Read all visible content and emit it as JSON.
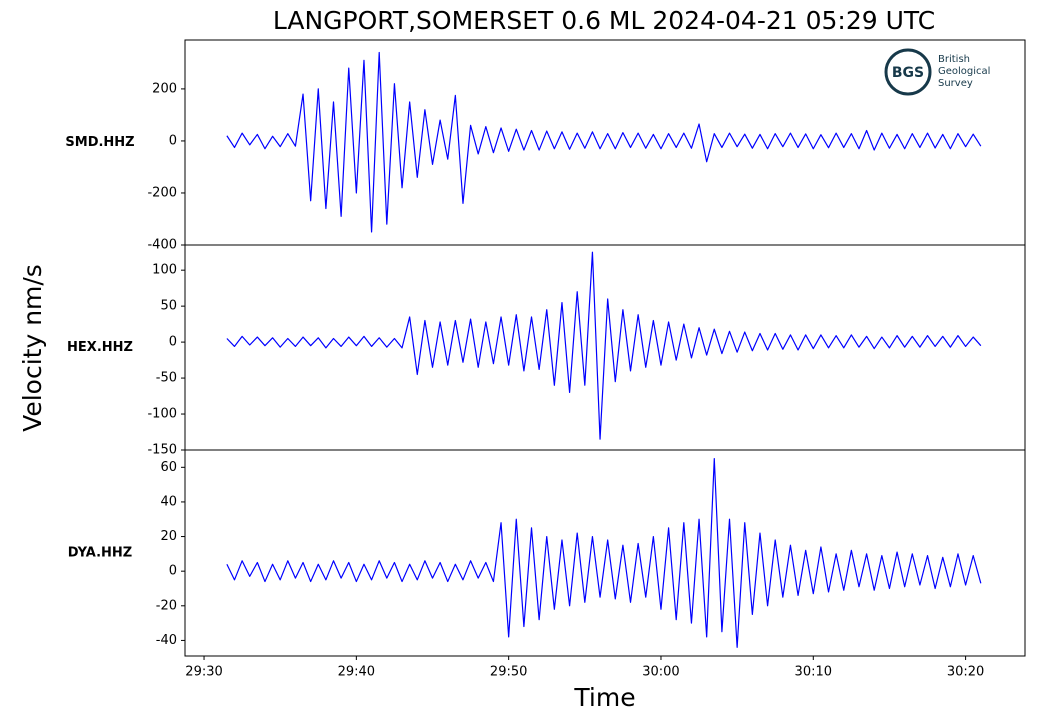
{
  "figure": {
    "title": "LANGPORT,SOMERSET 0.6 ML   2024-04-21 05:29 UTC",
    "ylabel": "Velocity nm/s",
    "xlabel": "Time"
  },
  "logo": {
    "abbr": "BGS",
    "lines": [
      "British",
      "Geological",
      "Survey"
    ]
  },
  "chart_data": [
    {
      "type": "line",
      "xlim": [
        1768.75,
        1823.9
      ],
      "ylim": [
        -400,
        388
      ],
      "yticks": [
        -400,
        -200,
        0,
        200
      ],
      "x": [
        1771.5,
        1772,
        1772.5,
        1773,
        1773.5,
        1774,
        1774.5,
        1775,
        1775.5,
        1776,
        1776.5,
        1777,
        1777.5,
        1778,
        1778.5,
        1779,
        1779.5,
        1780,
        1780.5,
        1781,
        1781.5,
        1782,
        1782.5,
        1783,
        1783.5,
        1784,
        1784.5,
        1785,
        1785.5,
        1786,
        1786.5,
        1787,
        1787.5,
        1788,
        1788.5,
        1789,
        1789.5,
        1790,
        1790.5,
        1791,
        1791.5,
        1792,
        1792.5,
        1793,
        1793.5,
        1794,
        1794.5,
        1795,
        1795.5,
        1796,
        1796.5,
        1797,
        1797.5,
        1798,
        1798.5,
        1799,
        1799.5,
        1800,
        1800.5,
        1801,
        1801.5,
        1802,
        1802.5,
        1803,
        1803.5,
        1804,
        1804.5,
        1805,
        1805.5,
        1806,
        1806.5,
        1807,
        1807.5,
        1808,
        1808.5,
        1809,
        1809.5,
        1810,
        1810.5,
        1811,
        1811.5,
        1812,
        1812.5,
        1813,
        1813.5,
        1814,
        1814.5,
        1815,
        1815.5,
        1816,
        1816.5,
        1817,
        1817.5,
        1818,
        1818.5,
        1819,
        1819.5,
        1820,
        1820.5,
        1821
      ],
      "series": [
        {
          "name": "SMD.HHZ",
          "color": "#0000ff",
          "values": [
            20,
            -25,
            30,
            -15,
            25,
            -30,
            18,
            -22,
            28,
            -20,
            180,
            -230,
            200,
            -260,
            150,
            -290,
            280,
            -200,
            310,
            -350,
            340,
            -320,
            220,
            -180,
            150,
            -140,
            120,
            -90,
            80,
            -70,
            175,
            -240,
            60,
            -50,
            55,
            -45,
            50,
            -40,
            45,
            -35,
            40,
            -35,
            38,
            -30,
            35,
            -32,
            30,
            -28,
            35,
            -30,
            28,
            -30,
            32,
            -25,
            30,
            -28,
            25,
            -30,
            28,
            -25,
            30,
            -28,
            65,
            -80,
            28,
            -25,
            30,
            -22,
            26,
            -28,
            25,
            -30,
            28,
            -22,
            30,
            -25,
            27,
            -30,
            24,
            -26,
            30,
            -25,
            28,
            -30,
            40,
            -35,
            30,
            -28,
            25,
            -30,
            28,
            -25,
            30,
            -27,
            25,
            -30,
            28,
            -22,
            26,
            -20
          ]
        }
      ]
    },
    {
      "type": "line",
      "xlim": [
        1768.75,
        1823.9
      ],
      "ylim": [
        -150,
        135
      ],
      "yticks": [
        -150,
        -100,
        -50,
        0,
        50,
        100
      ],
      "x": [
        1771.5,
        1772,
        1772.5,
        1773,
        1773.5,
        1774,
        1774.5,
        1775,
        1775.5,
        1776,
        1776.5,
        1777,
        1777.5,
        1778,
        1778.5,
        1779,
        1779.5,
        1780,
        1780.5,
        1781,
        1781.5,
        1782,
        1782.5,
        1783,
        1783.5,
        1784,
        1784.5,
        1785,
        1785.5,
        1786,
        1786.5,
        1787,
        1787.5,
        1788,
        1788.5,
        1789,
        1789.5,
        1790,
        1790.5,
        1791,
        1791.5,
        1792,
        1792.5,
        1793,
        1793.5,
        1794,
        1794.5,
        1795,
        1795.5,
        1796,
        1796.5,
        1797,
        1797.5,
        1798,
        1798.5,
        1799,
        1799.5,
        1800,
        1800.5,
        1801,
        1801.5,
        1802,
        1802.5,
        1803,
        1803.5,
        1804,
        1804.5,
        1805,
        1805.5,
        1806,
        1806.5,
        1807,
        1807.5,
        1808,
        1808.5,
        1809,
        1809.5,
        1810,
        1810.5,
        1811,
        1811.5,
        1812,
        1812.5,
        1813,
        1813.5,
        1814,
        1814.5,
        1815,
        1815.5,
        1816,
        1816.5,
        1817,
        1817.5,
        1818,
        1818.5,
        1819,
        1819.5,
        1820,
        1820.5,
        1821
      ],
      "series": [
        {
          "name": "HEX.HHZ",
          "color": "#0000ff",
          "values": [
            5,
            -6,
            8,
            -4,
            7,
            -5,
            6,
            -7,
            5,
            -6,
            7,
            -5,
            6,
            -8,
            5,
            -6,
            7,
            -5,
            8,
            -6,
            6,
            -7,
            5,
            -8,
            35,
            -45,
            30,
            -35,
            28,
            -32,
            30,
            -28,
            32,
            -35,
            28,
            -30,
            35,
            -32,
            38,
            -40,
            35,
            -38,
            45,
            -60,
            55,
            -70,
            70,
            -60,
            125,
            -135,
            60,
            -55,
            45,
            -40,
            38,
            -35,
            30,
            -32,
            28,
            -25,
            25,
            -22,
            20,
            -18,
            18,
            -16,
            15,
            -14,
            14,
            -12,
            12,
            -11,
            12,
            -10,
            10,
            -11,
            10,
            -9,
            10,
            -8,
            9,
            -8,
            10,
            -7,
            8,
            -9,
            7,
            -8,
            9,
            -7,
            8,
            -7,
            9,
            -6,
            8,
            -7,
            9,
            -6,
            7,
            -5
          ]
        }
      ]
    },
    {
      "type": "line",
      "xlim": [
        1768.75,
        1823.9
      ],
      "ylim": [
        -49,
        70
      ],
      "yticks": [
        -40,
        -20,
        0,
        20,
        40,
        60
      ],
      "xticks": [
        {
          "value": 1770,
          "label": "29:30"
        },
        {
          "value": 1780,
          "label": "29:40"
        },
        {
          "value": 1790,
          "label": "29:50"
        },
        {
          "value": 1800,
          "label": "30:00"
        },
        {
          "value": 1810,
          "label": "30:10"
        },
        {
          "value": 1820,
          "label": "30:20"
        }
      ],
      "x": [
        1771.5,
        1772,
        1772.5,
        1773,
        1773.5,
        1774,
        1774.5,
        1775,
        1775.5,
        1776,
        1776.5,
        1777,
        1777.5,
        1778,
        1778.5,
        1779,
        1779.5,
        1780,
        1780.5,
        1781,
        1781.5,
        1782,
        1782.5,
        1783,
        1783.5,
        1784,
        1784.5,
        1785,
        1785.5,
        1786,
        1786.5,
        1787,
        1787.5,
        1788,
        1788.5,
        1789,
        1789.5,
        1790,
        1790.5,
        1791,
        1791.5,
        1792,
        1792.5,
        1793,
        1793.5,
        1794,
        1794.5,
        1795,
        1795.5,
        1796,
        1796.5,
        1797,
        1797.5,
        1798,
        1798.5,
        1799,
        1799.5,
        1800,
        1800.5,
        1801,
        1801.5,
        1802,
        1802.5,
        1803,
        1803.5,
        1804,
        1804.5,
        1805,
        1805.5,
        1806,
        1806.5,
        1807,
        1807.5,
        1808,
        1808.5,
        1809,
        1809.5,
        1810,
        1810.5,
        1811,
        1811.5,
        1812,
        1812.5,
        1813,
        1813.5,
        1814,
        1814.5,
        1815,
        1815.5,
        1816,
        1816.5,
        1817,
        1817.5,
        1818,
        1818.5,
        1819,
        1819.5,
        1820,
        1820.5,
        1821
      ],
      "series": [
        {
          "name": "DYA.HHZ",
          "color": "#0000ff",
          "values": [
            4,
            -5,
            6,
            -3,
            5,
            -6,
            4,
            -5,
            6,
            -4,
            5,
            -6,
            4,
            -5,
            6,
            -4,
            5,
            -6,
            4,
            -5,
            6,
            -4,
            5,
            -6,
            4,
            -5,
            6,
            -4,
            5,
            -6,
            4,
            -5,
            6,
            -4,
            5,
            -6,
            28,
            -38,
            30,
            -32,
            25,
            -28,
            20,
            -22,
            18,
            -20,
            22,
            -18,
            20,
            -15,
            18,
            -16,
            15,
            -18,
            16,
            -15,
            20,
            -22,
            25,
            -28,
            28,
            -30,
            30,
            -38,
            65,
            -35,
            30,
            -44,
            28,
            -25,
            22,
            -20,
            18,
            -15,
            15,
            -14,
            12,
            -13,
            14,
            -12,
            10,
            -11,
            12,
            -9,
            10,
            -11,
            9,
            -10,
            11,
            -9,
            10,
            -8,
            9,
            -10,
            8,
            -9,
            10,
            -8,
            9,
            -7
          ]
        }
      ]
    }
  ]
}
